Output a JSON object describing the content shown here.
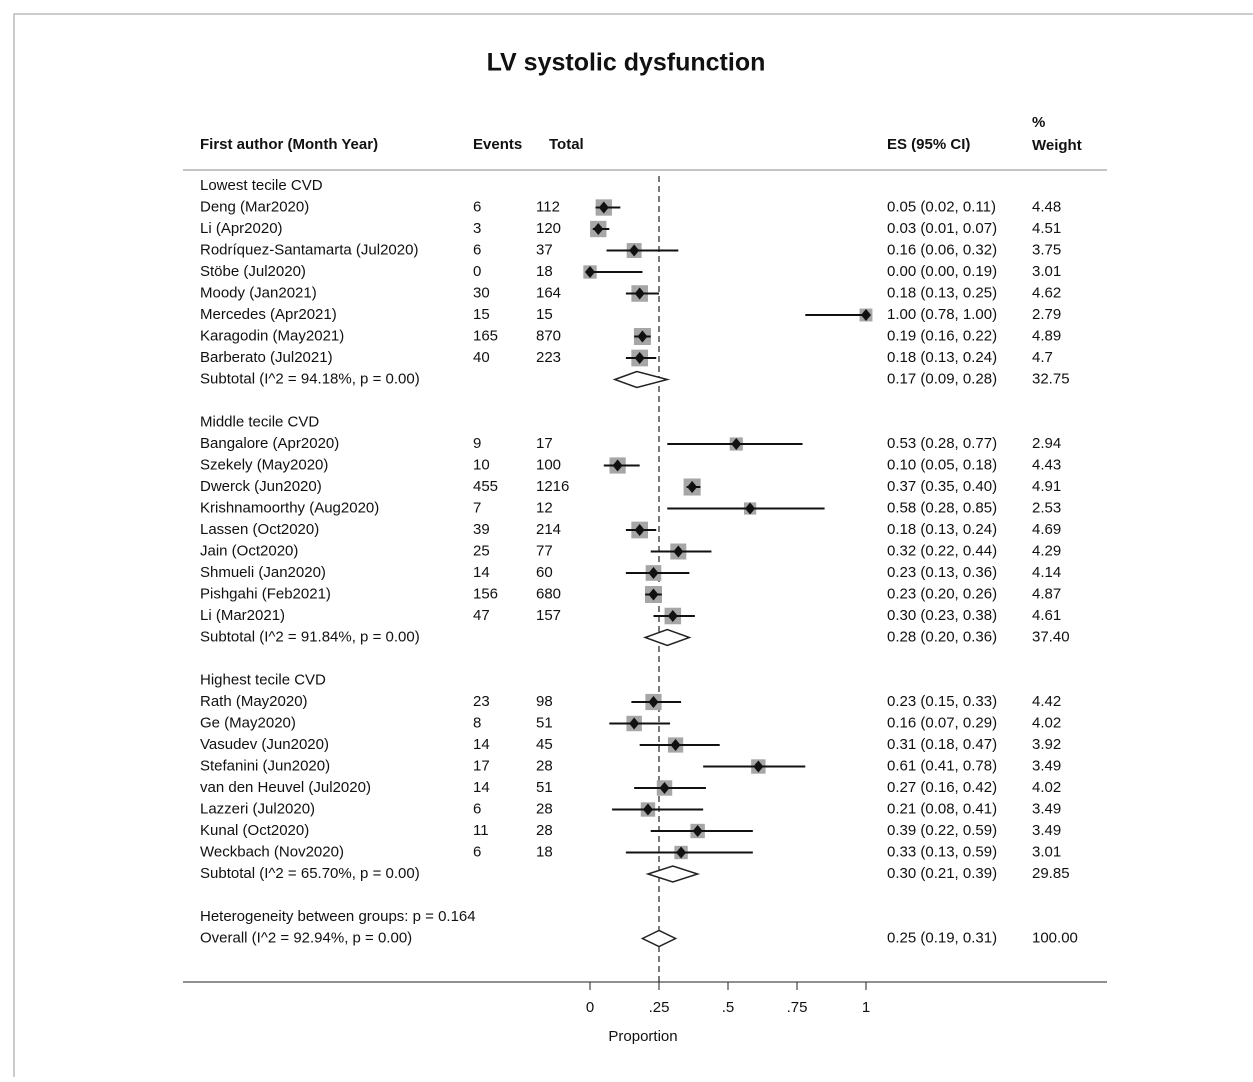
{
  "chart_data": {
    "type": "forest",
    "title": "LV systolic dysfunction",
    "columns": {
      "study": "First author (Month Year)",
      "events": "Events",
      "total": "Total",
      "es": "ES (95% CI)",
      "weight": [
        "%",
        "Weight"
      ]
    },
    "groups": [
      {
        "name": "Lowest tecile CVD",
        "studies": [
          {
            "name": "Deng (Mar2020)",
            "events": 6,
            "total": 112,
            "es": 0.05,
            "lo": 0.02,
            "hi": 0.11,
            "es_label": "0.05 (0.02, 0.11)",
            "weight": 4.48
          },
          {
            "name": "Li (Apr2020)",
            "events": 3,
            "total": 120,
            "es": 0.03,
            "lo": 0.01,
            "hi": 0.07,
            "es_label": "0.03 (0.01, 0.07)",
            "weight": 4.51
          },
          {
            "name": "Rodríquez-Santamarta (Jul2020)",
            "events": 6,
            "total": 37,
            "es": 0.16,
            "lo": 0.06,
            "hi": 0.32,
            "es_label": "0.16 (0.06, 0.32)",
            "weight": 3.75
          },
          {
            "name": "Stöbe (Jul2020)",
            "events": 0,
            "total": 18,
            "es": 0.0,
            "lo": 0.0,
            "hi": 0.19,
            "es_label": "0.00 (0.00, 0.19)",
            "weight": 3.01
          },
          {
            "name": "Moody (Jan2021)",
            "events": 30,
            "total": 164,
            "es": 0.18,
            "lo": 0.13,
            "hi": 0.25,
            "es_label": "0.18 (0.13, 0.25)",
            "weight": 4.62
          },
          {
            "name": "Mercedes (Apr2021)",
            "events": 15,
            "total": 15,
            "es": 1.0,
            "lo": 0.78,
            "hi": 1.0,
            "es_label": "1.00 (0.78, 1.00)",
            "weight": 2.79
          },
          {
            "name": "Karagodin (May2021)",
            "events": 165,
            "total": 870,
            "es": 0.19,
            "lo": 0.16,
            "hi": 0.22,
            "es_label": "0.19 (0.16, 0.22)",
            "weight": 4.89
          },
          {
            "name": "Barberato (Jul2021)",
            "events": 40,
            "total": 223,
            "es": 0.18,
            "lo": 0.13,
            "hi": 0.24,
            "es_label": "0.18 (0.13, 0.24)",
            "weight": 4.7
          }
        ],
        "subtotal": {
          "name": "Subtotal (I^2 = 94.18%, p = 0.00)",
          "es": 0.17,
          "lo": 0.09,
          "hi": 0.28,
          "es_label": "0.17 (0.09, 0.28)",
          "weight": 32.75
        }
      },
      {
        "name": "Middle tecile CVD",
        "studies": [
          {
            "name": "Bangalore (Apr2020)",
            "events": 9,
            "total": 17,
            "es": 0.53,
            "lo": 0.28,
            "hi": 0.77,
            "es_label": "0.53 (0.28, 0.77)",
            "weight": 2.94
          },
          {
            "name": "Szekely (May2020)",
            "events": 10,
            "total": 100,
            "es": 0.1,
            "lo": 0.05,
            "hi": 0.18,
            "es_label": "0.10 (0.05, 0.18)",
            "weight": 4.43
          },
          {
            "name": "Dwerck (Jun2020)",
            "events": 455,
            "total": 1216,
            "es": 0.37,
            "lo": 0.35,
            "hi": 0.4,
            "es_label": "0.37 (0.35, 0.40)",
            "weight": 4.91
          },
          {
            "name": "Krishnamoorthy (Aug2020)",
            "events": 7,
            "total": 12,
            "es": 0.58,
            "lo": 0.28,
            "hi": 0.85,
            "es_label": "0.58 (0.28, 0.85)",
            "weight": 2.53
          },
          {
            "name": "Lassen (Oct2020)",
            "events": 39,
            "total": 214,
            "es": 0.18,
            "lo": 0.13,
            "hi": 0.24,
            "es_label": "0.18 (0.13, 0.24)",
            "weight": 4.69
          },
          {
            "name": "Jain (Oct2020)",
            "events": 25,
            "total": 77,
            "es": 0.32,
            "lo": 0.22,
            "hi": 0.44,
            "es_label": "0.32 (0.22, 0.44)",
            "weight": 4.29
          },
          {
            "name": "Shmueli (Jan2020)",
            "events": 14,
            "total": 60,
            "es": 0.23,
            "lo": 0.13,
            "hi": 0.36,
            "es_label": "0.23 (0.13, 0.36)",
            "weight": 4.14
          },
          {
            "name": "Pishgahi (Feb2021)",
            "events": 156,
            "total": 680,
            "es": 0.23,
            "lo": 0.2,
            "hi": 0.26,
            "es_label": "0.23 (0.20, 0.26)",
            "weight": 4.87
          },
          {
            "name": "Li (Mar2021)",
            "events": 47,
            "total": 157,
            "es": 0.3,
            "lo": 0.23,
            "hi": 0.38,
            "es_label": "0.30 (0.23, 0.38)",
            "weight": 4.61
          }
        ],
        "subtotal": {
          "name": "Subtotal (I^2 = 91.84%, p = 0.00)",
          "es": 0.28,
          "lo": 0.2,
          "hi": 0.36,
          "es_label": "0.28 (0.20, 0.36)",
          "weight": {
            "value": 37.4,
            "label": "37.40"
          }
        }
      },
      {
        "name": "Highest tecile CVD",
        "studies": [
          {
            "name": "Rath (May2020)",
            "events": 23,
            "total": 98,
            "es": 0.23,
            "lo": 0.15,
            "hi": 0.33,
            "es_label": "0.23 (0.15, 0.33)",
            "weight": 4.42
          },
          {
            "name": "Ge (May2020)",
            "events": 8,
            "total": 51,
            "es": 0.16,
            "lo": 0.07,
            "hi": 0.29,
            "es_label": "0.16 (0.07, 0.29)",
            "weight": 4.02
          },
          {
            "name": "Vasudev (Jun2020)",
            "events": 14,
            "total": 45,
            "es": 0.31,
            "lo": 0.18,
            "hi": 0.47,
            "es_label": "0.31 (0.18, 0.47)",
            "weight": 3.92
          },
          {
            "name": "Stefanini (Jun2020)",
            "events": 17,
            "total": 28,
            "es": 0.61,
            "lo": 0.41,
            "hi": 0.78,
            "es_label": "0.61 (0.41, 0.78)",
            "weight": 3.49
          },
          {
            "name": "van den Heuvel (Jul2020)",
            "events": 14,
            "total": 51,
            "es": 0.27,
            "lo": 0.16,
            "hi": 0.42,
            "es_label": "0.27 (0.16, 0.42)",
            "weight": 4.02
          },
          {
            "name": "Lazzeri (Jul2020)",
            "events": 6,
            "total": 28,
            "es": 0.21,
            "lo": 0.08,
            "hi": 0.41,
            "es_label": "0.21 (0.08, 0.41)",
            "weight": 3.49
          },
          {
            "name": "Kunal (Oct2020)",
            "events": 11,
            "total": 28,
            "es": 0.39,
            "lo": 0.22,
            "hi": 0.59,
            "es_label": "0.39 (0.22, 0.59)",
            "weight": 3.49
          },
          {
            "name": "Weckbach (Nov2020)",
            "events": 6,
            "total": 18,
            "es": 0.33,
            "lo": 0.13,
            "hi": 0.59,
            "es_label": "0.33 (0.13, 0.59)",
            "weight": 3.01
          }
        ],
        "subtotal": {
          "name": "Subtotal (I^2 = 65.70%, p = 0.00)",
          "es": 0.3,
          "lo": 0.21,
          "hi": 0.39,
          "es_label": "0.30 (0.21, 0.39)",
          "weight": 29.85
        }
      }
    ],
    "heterogeneity": "Heterogeneity between groups: p = 0.164",
    "overall": {
      "name": "Overall (I^2 = 92.94%, p = 0.00)",
      "es": 0.25,
      "lo": 0.19,
      "hi": 0.31,
      "es_label": "0.25 (0.19, 0.31)",
      "weight": {
        "value": 100,
        "label": "100.00"
      }
    },
    "xlim": [
      0,
      1
    ],
    "xticks": [
      0,
      {
        "value": 0.25,
        "label": ".25"
      },
      {
        "value": 0.5,
        "label": ".5"
      },
      {
        "value": 0.75,
        "label": ".75"
      },
      1
    ],
    "xlabel": "Proportion",
    "box_color": "#a6a6a6"
  }
}
